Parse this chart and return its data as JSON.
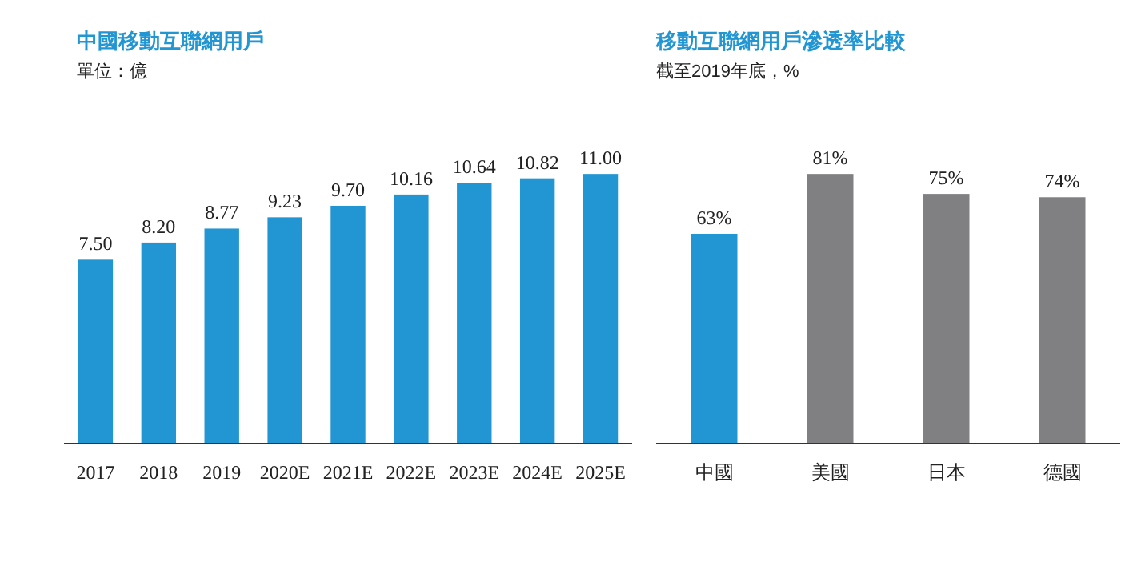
{
  "chart_data": [
    {
      "type": "bar",
      "title": "中國移動互聯網用戶",
      "subtitle": "單位：億",
      "categories": [
        "2017",
        "2018",
        "2019",
        "2020E",
        "2021E",
        "2022E",
        "2023E",
        "2024E",
        "2025E"
      ],
      "values": [
        7.5,
        8.2,
        8.77,
        9.23,
        9.7,
        10.16,
        10.64,
        10.82,
        11.0
      ],
      "value_labels": [
        "7.50",
        "8.20",
        "8.77",
        "9.23",
        "9.70",
        "10.16",
        "10.64",
        "10.82",
        "11.00"
      ],
      "color": "#2196d3",
      "tick_labels": "x"
    },
    {
      "type": "bar",
      "title": "移動互聯網用戶滲透率比較",
      "subtitle": "截至2019年底，%",
      "categories": [
        "中國",
        "美國",
        "日本",
        "德國"
      ],
      "values": [
        63,
        81,
        75,
        74
      ],
      "value_labels": [
        "63%",
        "81%",
        "75%",
        "74%"
      ],
      "colors": [
        "#2196d3",
        "#808083",
        "#808083",
        "#808083"
      ],
      "tick_labels": "x"
    }
  ]
}
